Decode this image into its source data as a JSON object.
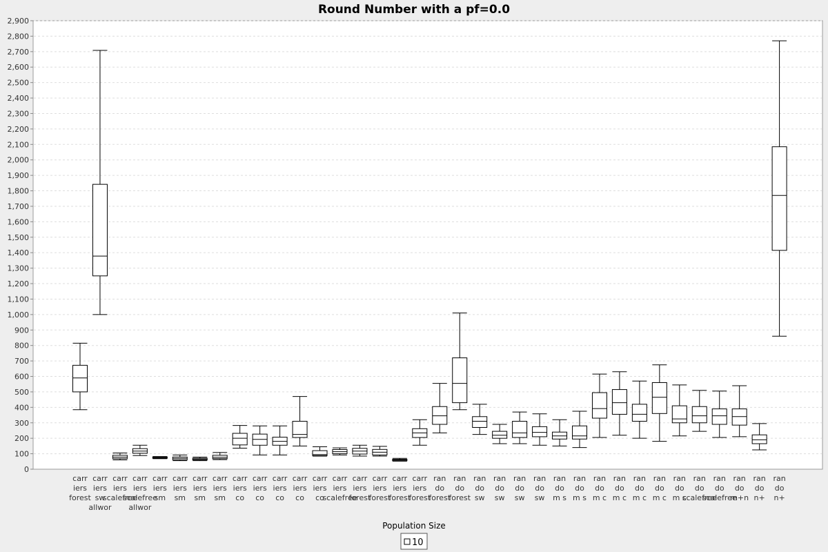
{
  "chart_data": {
    "type": "box",
    "title": "Round Number with a pf=0.0",
    "xlabel": "Population Size",
    "ylabel": "",
    "ylim": [
      0,
      2900
    ],
    "ytick_step": 100,
    "ytick_labels": [
      "0",
      "100",
      "200",
      "300",
      "400",
      "500",
      "600",
      "700",
      "800",
      "900",
      "1,000",
      "1,100",
      "1,200",
      "1,300",
      "1,400",
      "1,500",
      "1,600",
      "1,700",
      "1,800",
      "1,900",
      "2,000",
      "2,100",
      "2,200",
      "2,300",
      "2,400",
      "2,500",
      "2,600",
      "2,700",
      "2,800",
      "2,900"
    ],
    "grid": true,
    "legend": {
      "position": "bottom-center",
      "entries": [
        "10"
      ]
    },
    "series": [
      {
        "name": "10"
      }
    ],
    "categories": [
      {
        "label_lines": [
          "carr",
          "iers",
          "forest"
        ],
        "whisker_low": 385,
        "q1": 500,
        "median": 590,
        "q3": 672,
        "whisker_high": 815
      },
      {
        "label_lines": [
          "carr",
          "iers",
          "sw",
          "allwor"
        ],
        "whisker_low": 1000,
        "q1": 1250,
        "median": 1378,
        "q3": 1842,
        "whisker_high": 2708
      },
      {
        "label_lines": [
          "carr",
          "iers",
          "scalefree"
        ],
        "whisker_low": 60,
        "q1": 68,
        "median": 78,
        "q3": 90,
        "whisker_high": 105
      },
      {
        "label_lines": [
          "carr",
          "iers",
          "scalefree",
          "allwor"
        ],
        "whisker_low": 88,
        "q1": 103,
        "median": 117,
        "q3": 133,
        "whisker_high": 155
      },
      {
        "label_lines": [
          "carr",
          "iers",
          "sm"
        ],
        "whisker_low": 68,
        "q1": 71,
        "median": 75,
        "q3": 79,
        "whisker_high": 82
      },
      {
        "label_lines": [
          "carr",
          "iers",
          "sm"
        ],
        "whisker_low": 55,
        "q1": 61,
        "median": 70,
        "q3": 79,
        "whisker_high": 92
      },
      {
        "label_lines": [
          "carr",
          "iers",
          "sm"
        ],
        "whisker_low": 55,
        "q1": 60,
        "median": 66,
        "q3": 71,
        "whisker_high": 78
      },
      {
        "label_lines": [
          "carr",
          "iers",
          "sm"
        ],
        "whisker_low": 62,
        "q1": 68,
        "median": 77,
        "q3": 90,
        "whisker_high": 108
      },
      {
        "label_lines": [
          "carr",
          "iers",
          "co"
        ],
        "whisker_low": 136,
        "q1": 157,
        "median": 200,
        "q3": 232,
        "whisker_high": 283
      },
      {
        "label_lines": [
          "carr",
          "iers",
          "co"
        ],
        "whisker_low": 92,
        "q1": 155,
        "median": 193,
        "q3": 227,
        "whisker_high": 280
      },
      {
        "label_lines": [
          "carr",
          "iers",
          "co"
        ],
        "whisker_low": 92,
        "q1": 155,
        "median": 180,
        "q3": 207,
        "whisker_high": 280
      },
      {
        "label_lines": [
          "carr",
          "iers",
          "co"
        ],
        "whisker_low": 150,
        "q1": 205,
        "median": 225,
        "q3": 310,
        "whisker_high": 470
      },
      {
        "label_lines": [
          "carr",
          "iers",
          "co"
        ],
        "whisker_low": 85,
        "q1": 88,
        "median": 95,
        "q3": 120,
        "whisker_high": 145
      },
      {
        "label_lines": [
          "carr",
          "iers",
          "scalefree"
        ],
        "whisker_low": 92,
        "q1": 100,
        "median": 113,
        "q3": 127,
        "whisker_high": 138
      },
      {
        "label_lines": [
          "carr",
          "iers",
          "forest"
        ],
        "whisker_low": 85,
        "q1": 98,
        "median": 117,
        "q3": 135,
        "whisker_high": 155
      },
      {
        "label_lines": [
          "carr",
          "iers",
          "forest"
        ],
        "whisker_low": 85,
        "q1": 92,
        "median": 110,
        "q3": 128,
        "whisker_high": 148
      },
      {
        "label_lines": [
          "carr",
          "iers",
          "forest"
        ],
        "whisker_low": 52,
        "q1": 55,
        "median": 60,
        "q3": 64,
        "whisker_high": 70
      },
      {
        "label_lines": [
          "carr",
          "iers",
          "forest"
        ],
        "whisker_low": 155,
        "q1": 205,
        "median": 235,
        "q3": 262,
        "whisker_high": 320
      },
      {
        "label_lines": [
          "ran",
          "do",
          "forest"
        ],
        "whisker_low": 235,
        "q1": 290,
        "median": 345,
        "q3": 405,
        "whisker_high": 555
      },
      {
        "label_lines": [
          "ran",
          "do",
          "forest"
        ],
        "whisker_low": 385,
        "q1": 430,
        "median": 555,
        "q3": 720,
        "whisker_high": 1010
      },
      {
        "label_lines": [
          "ran",
          "do",
          "sw"
        ],
        "whisker_low": 225,
        "q1": 270,
        "median": 310,
        "q3": 340,
        "whisker_high": 420
      },
      {
        "label_lines": [
          "ran",
          "do",
          "sw"
        ],
        "whisker_low": 165,
        "q1": 200,
        "median": 220,
        "q3": 245,
        "whisker_high": 290
      },
      {
        "label_lines": [
          "ran",
          "do",
          "sw"
        ],
        "whisker_low": 165,
        "q1": 205,
        "median": 235,
        "q3": 310,
        "whisker_high": 370
      },
      {
        "label_lines": [
          "ran",
          "do",
          "sw"
        ],
        "whisker_low": 155,
        "q1": 210,
        "median": 238,
        "q3": 275,
        "whisker_high": 358
      },
      {
        "label_lines": [
          "ran",
          "do",
          "m s"
        ],
        "whisker_low": 150,
        "q1": 195,
        "median": 215,
        "q3": 240,
        "whisker_high": 320
      },
      {
        "label_lines": [
          "ran",
          "do",
          "m s"
        ],
        "whisker_low": 140,
        "q1": 195,
        "median": 215,
        "q3": 280,
        "whisker_high": 375
      },
      {
        "label_lines": [
          "ran",
          "do",
          "m c"
        ],
        "whisker_low": 205,
        "q1": 330,
        "median": 392,
        "q3": 495,
        "whisker_high": 615
      },
      {
        "label_lines": [
          "ran",
          "do",
          "m c"
        ],
        "whisker_low": 220,
        "q1": 355,
        "median": 430,
        "q3": 515,
        "whisker_high": 630
      },
      {
        "label_lines": [
          "ran",
          "do",
          "m c"
        ],
        "whisker_low": 200,
        "q1": 310,
        "median": 355,
        "q3": 420,
        "whisker_high": 570
      },
      {
        "label_lines": [
          "ran",
          "do",
          "m c"
        ],
        "whisker_low": 180,
        "q1": 360,
        "median": 465,
        "q3": 560,
        "whisker_high": 675
      },
      {
        "label_lines": [
          "ran",
          "do",
          "m c"
        ],
        "whisker_low": 215,
        "q1": 300,
        "median": 325,
        "q3": 410,
        "whisker_high": 545
      },
      {
        "label_lines": [
          "ran",
          "do",
          "scalefree"
        ],
        "whisker_low": 245,
        "q1": 300,
        "median": 345,
        "q3": 405,
        "whisker_high": 510
      },
      {
        "label_lines": [
          "ran",
          "do",
          "scalefree"
        ],
        "whisker_low": 205,
        "q1": 290,
        "median": 345,
        "q3": 390,
        "whisker_high": 505
      },
      {
        "label_lines": [
          "ran",
          "do",
          "m+n"
        ],
        "whisker_low": 210,
        "q1": 285,
        "median": 340,
        "q3": 390,
        "whisker_high": 540
      },
      {
        "label_lines": [
          "ran",
          "do",
          "n+"
        ],
        "whisker_low": 125,
        "q1": 165,
        "median": 190,
        "q3": 222,
        "whisker_high": 295
      },
      {
        "label_lines": [
          "ran",
          "do",
          "n+"
        ],
        "whisker_low": 860,
        "q1": 1415,
        "median": 1770,
        "q3": 2085,
        "whisker_high": 2770
      }
    ]
  }
}
